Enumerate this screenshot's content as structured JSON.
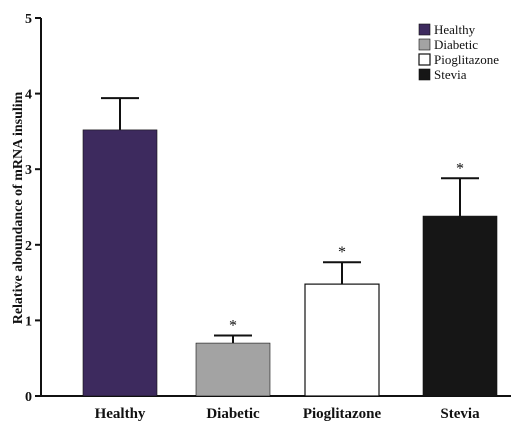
{
  "chart_data": {
    "type": "bar",
    "ylabel": "Relative aboundance of mRNA insulim",
    "ylim": [
      0,
      5
    ],
    "yticks": [
      "0",
      "1",
      "2",
      "3",
      "4",
      "5"
    ],
    "categories": [
      "Healthy",
      "Diabetic",
      "Pioglitazone",
      "Stevia"
    ],
    "values": [
      3.52,
      0.7,
      1.48,
      2.38
    ],
    "errors": [
      0.42,
      0.1,
      0.29,
      0.5
    ],
    "annotations": [
      "",
      "*",
      "*",
      "*"
    ],
    "colors": [
      "#3d2a5e",
      "#a3a3a3",
      "#ffffff",
      "#161616"
    ],
    "legend": {
      "position": "top-right",
      "entries": [
        "Healthy",
        "Diabetic",
        "Pioglitazone",
        "Stevia"
      ]
    },
    "grid": false
  }
}
